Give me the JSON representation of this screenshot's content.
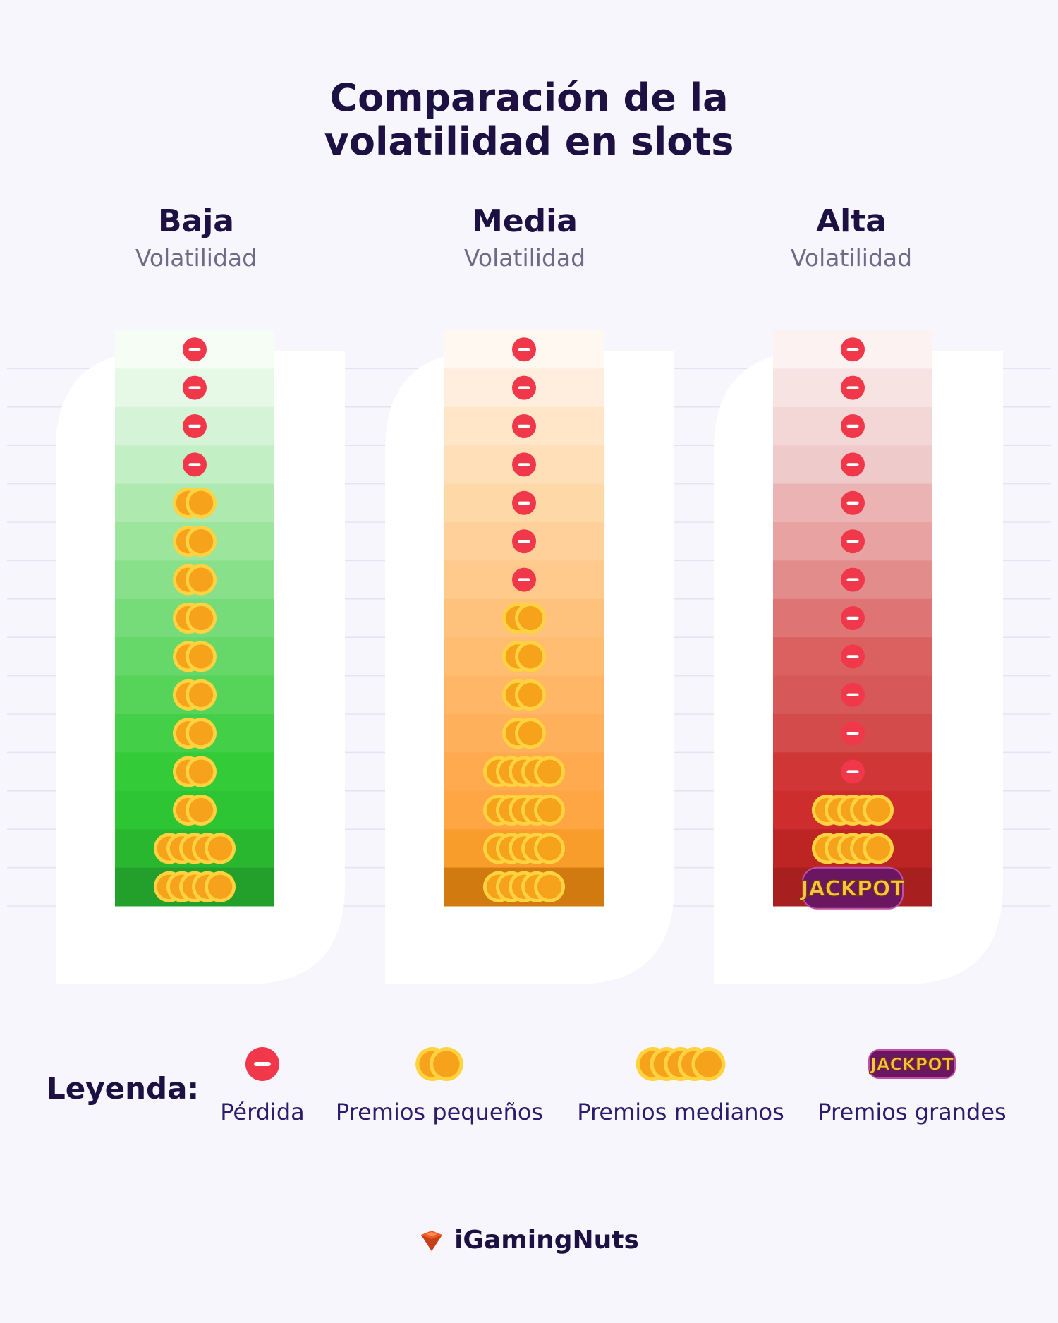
{
  "title_line1": "Comparación de la",
  "title_line2": "volatilidad en slots",
  "columns": [
    {
      "name": "Baja",
      "subtitle": "Volatilidad"
    },
    {
      "name": "Media",
      "subtitle": "Volatilidad"
    },
    {
      "name": "Alta",
      "subtitle": "Volatilidad"
    }
  ],
  "legend": {
    "title": "Leyenda:",
    "items": [
      {
        "key": "loss",
        "label": "Pérdida"
      },
      {
        "key": "small",
        "label": "Premios pequeños"
      },
      {
        "key": "medium",
        "label": "Premios medianos"
      },
      {
        "key": "jackpot",
        "label": "Premios grandes"
      }
    ]
  },
  "jackpot_text": "JACKPOT",
  "brand": "iGamingNuts",
  "colors": {
    "title": "#1c1142",
    "loss": "#f0384a",
    "coin": "#f7a21b",
    "coin_rim": "#ffd23f",
    "jackpot_bg": "#6a1660",
    "jackpot_text": "#f5c542",
    "brand_icon": "#f05a28"
  },
  "chart_data": {
    "type": "table",
    "outcome_legend": [
      "loss",
      "small",
      "medium",
      "jackpot"
    ],
    "series": [
      {
        "name": "Baja",
        "column_colors": [
          "#f5fdf5",
          "#e6f8e6",
          "#d5f3d6",
          "#c3efc5",
          "#aeeab0",
          "#9be59d",
          "#88e08a",
          "#76dc79",
          "#66d869",
          "#55d459",
          "#44cf48",
          "#33cb38",
          "#2ec534",
          "#2ab730",
          "#22a02b"
        ],
        "rows": [
          "loss",
          "loss",
          "loss",
          "loss",
          "small",
          "small",
          "small",
          "small",
          "small",
          "small",
          "small",
          "small",
          "small",
          "medium",
          "medium"
        ]
      },
      {
        "name": "Media",
        "column_colors": [
          "#fff8f1",
          "#ffeedd",
          "#ffe6c9",
          "#ffdfb7",
          "#ffd8a7",
          "#ffd09a",
          "#ffca8c",
          "#ffc27d",
          "#ffbd72",
          "#ffb666",
          "#ffb05a",
          "#ffaa4f",
          "#fea544",
          "#f89c2c",
          "#d07a10"
        ],
        "rows": [
          "loss",
          "loss",
          "loss",
          "loss",
          "loss",
          "loss",
          "loss",
          "small",
          "small",
          "small",
          "small",
          "medium",
          "medium",
          "medium",
          "medium"
        ]
      },
      {
        "name": "Alta",
        "column_colors": [
          "#fcf2f1",
          "#f7e3e2",
          "#f3d7d7",
          "#efcaca",
          "#ebb3b3",
          "#e8a2a2",
          "#e38c8c",
          "#df7474",
          "#db6161",
          "#d65858",
          "#d34b4b",
          "#d03636",
          "#ce2d2d",
          "#bd2525",
          "#a81f1f"
        ],
        "rows": [
          "loss",
          "loss",
          "loss",
          "loss",
          "loss",
          "loss",
          "loss",
          "loss",
          "loss",
          "loss",
          "loss",
          "loss",
          "medium",
          "medium",
          "jackpot"
        ]
      }
    ]
  }
}
